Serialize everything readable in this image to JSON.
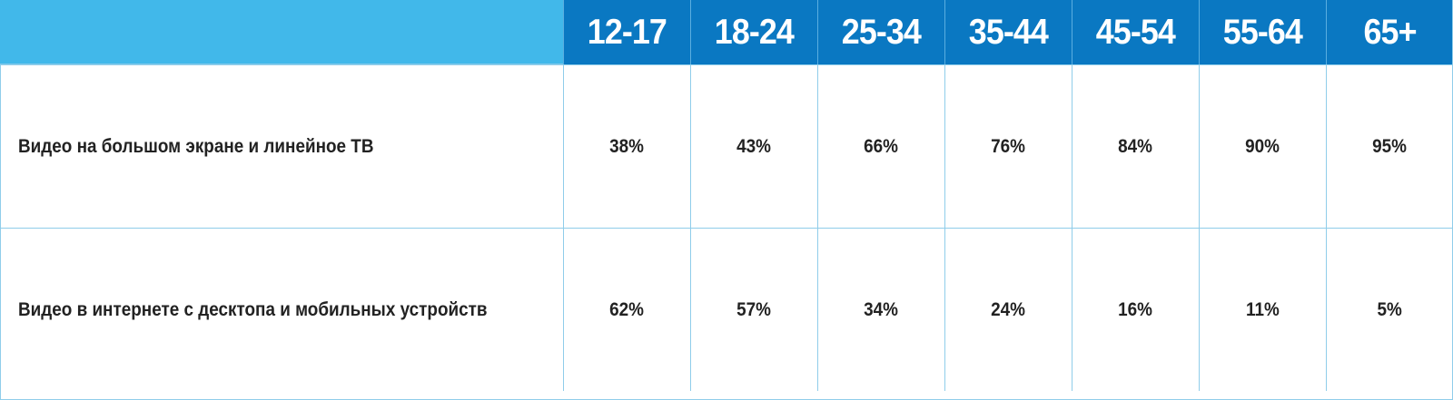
{
  "chart_data": {
    "type": "table",
    "columns": [
      "12-17",
      "18-24",
      "25-34",
      "35-44",
      "45-54",
      "55-64",
      "65+"
    ],
    "rows": [
      {
        "label": "Видео на большом экране и линейное ТВ",
        "values": [
          "38%",
          "43%",
          "66%",
          "76%",
          "84%",
          "90%",
          "95%"
        ]
      },
      {
        "label": "Видео в интернете с десктопа и мобильных устройств",
        "values": [
          "62%",
          "57%",
          "34%",
          "24%",
          "16%",
          "11%",
          "5%"
        ]
      }
    ]
  },
  "colors": {
    "header_bg": "#0a78c2",
    "corner_bg": "#41b8ea",
    "grid_line": "#8fcdea",
    "text": "#222222"
  }
}
